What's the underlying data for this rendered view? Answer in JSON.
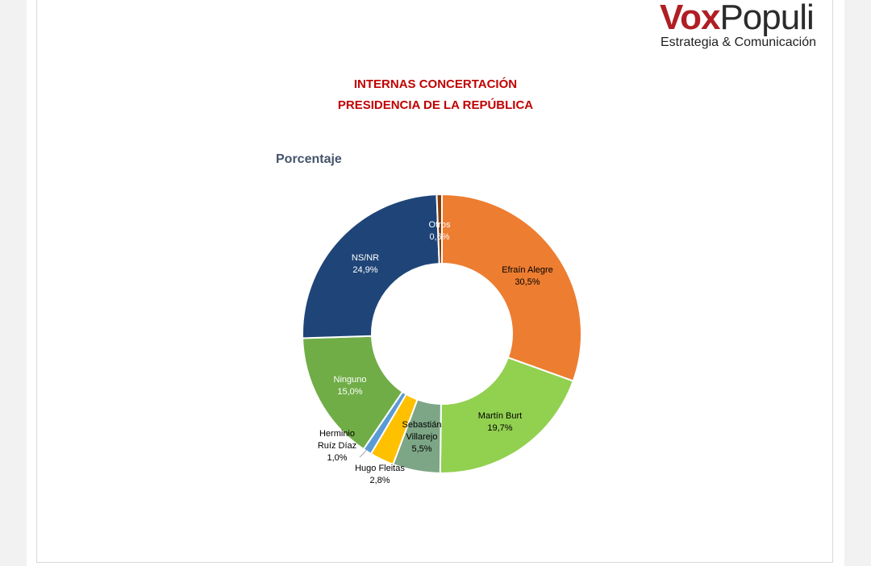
{
  "logo": {
    "brand_part1": "Vox",
    "brand_part2": "Populi",
    "tagline": "Estrategia & Comunicación"
  },
  "title_line1": "INTERNAS CONCERTACIÓN",
  "title_line2": "PRESIDENCIA DE LA REPÚBLICA",
  "colors": {
    "title": "#c00000",
    "subtitle": "#44546a",
    "brand_red": "#b01e23"
  },
  "chart_data": {
    "type": "pie",
    "variant": "donut",
    "title": "Porcentaje",
    "legend": "none",
    "slices": [
      {
        "label": "Efraín Alegre",
        "label_lines": [
          "Efraín Alegre"
        ],
        "value_text": "30,5%",
        "value": 30.5,
        "color": "#ed7d31",
        "text_color": "#000000"
      },
      {
        "label": "Martín Burt",
        "label_lines": [
          "Martín Burt"
        ],
        "value_text": "19,7%",
        "value": 19.7,
        "color": "#92d050",
        "text_color": "#000000"
      },
      {
        "label": "Sebastián Villarejo",
        "label_lines": [
          "Sebastián",
          "Villarejo"
        ],
        "value_text": "5,5%",
        "value": 5.5,
        "color": "#7da686",
        "text_color": "#000000"
      },
      {
        "label": "Hugo Fleitas",
        "label_lines": [
          "Hugo Fleitas"
        ],
        "value_text": "2,8%",
        "value": 2.8,
        "color": "#ffc000",
        "text_color": "#000000"
      },
      {
        "label": "Herminio Ruíz Díaz",
        "label_lines": [
          "Herminio",
          "Ruíz Díaz"
        ],
        "value_text": "1,0%",
        "value": 1.0,
        "color": "#5b9bd5",
        "text_color": "#000000"
      },
      {
        "label": "Ninguno",
        "label_lines": [
          "Ninguno"
        ],
        "value_text": "15,0%",
        "value": 15.0,
        "color": "#70ad47",
        "text_color": "#ffffff"
      },
      {
        "label": "NS/NR",
        "label_lines": [
          "NS/NR"
        ],
        "value_text": "24,9%",
        "value": 24.9,
        "color": "#1f4578",
        "text_color": "#ffffff"
      },
      {
        "label": "Otros",
        "label_lines": [
          "Otros"
        ],
        "value_text": "0,6%",
        "value": 0.6,
        "color": "#843c0c",
        "text_color": "#ffffff"
      }
    ]
  }
}
